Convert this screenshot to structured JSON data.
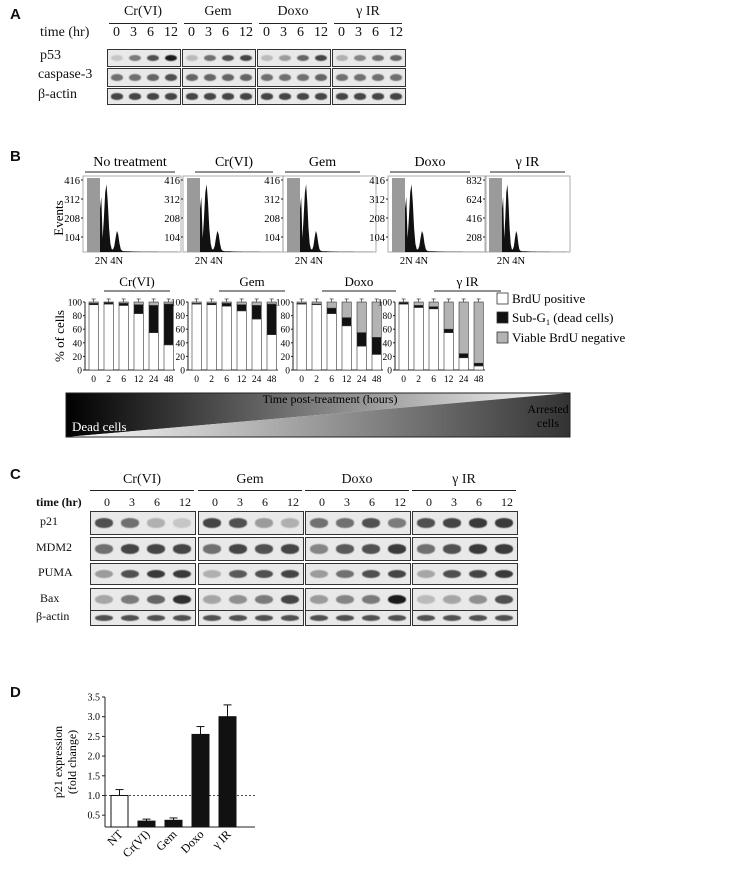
{
  "panels": {
    "a": "A",
    "b": "B",
    "c": "C",
    "d": "D"
  },
  "panel_a": {
    "groups": [
      "Cr(VI)",
      "Gem",
      "Doxo",
      "γ IR"
    ],
    "time_label": "time (hr)",
    "times": [
      "0",
      "3",
      "6",
      "12"
    ],
    "rows": [
      "p53",
      "caspase-3",
      "β-actin"
    ]
  },
  "panel_b_hist": {
    "titles": [
      "No treatment",
      "Cr(VI)",
      "Gem",
      "Doxo",
      "γ IR"
    ],
    "yticks": [
      [
        "416",
        "312",
        "208",
        "104"
      ],
      [
        "416",
        "312",
        "208",
        "104"
      ],
      [
        "416",
        "312",
        "208",
        "104"
      ],
      [
        "416",
        "312",
        "208",
        "104"
      ],
      [
        "832",
        "624",
        "416",
        "208"
      ]
    ],
    "ylabel": "Events",
    "xlabel": "2N 4N"
  },
  "panel_b_bars": {
    "ylabel": "% of cells",
    "yticks": [
      "100",
      "80",
      "60",
      "40",
      "20",
      "0"
    ],
    "groups": [
      "Cr(VI)",
      "Gem",
      "Doxo",
      "γ IR"
    ],
    "times": [
      "0",
      "2",
      "6",
      "12",
      "24",
      "48"
    ],
    "xlabel": "Time post-treatment (hours)",
    "legend": [
      "BrdU positive",
      "Sub-G",
      "1",
      " (dead cells)",
      "Viable BrdU negative"
    ],
    "gradient_left": "Dead cells",
    "gradient_right": [
      "Arrested",
      "cells"
    ]
  },
  "panel_c": {
    "groups": [
      "Cr(VI)",
      "Gem",
      "Doxo",
      "γ IR"
    ],
    "time_label": "time (hr)",
    "times": [
      "0",
      "3",
      "6",
      "12"
    ],
    "rows": [
      "p21",
      "MDM2",
      "PUMA",
      "Bax",
      "β-actin"
    ]
  },
  "chart_data": [
    {
      "type": "bar",
      "stacked": true,
      "title": "Cr(VI)",
      "categories": [
        "0",
        "2",
        "6",
        "12",
        "24",
        "48"
      ],
      "ylabel": "% of cells",
      "ylim": [
        0,
        100
      ],
      "series": [
        {
          "name": "BrdU positive",
          "values": [
            96,
            97,
            95,
            83,
            55,
            37
          ]
        },
        {
          "name": "Sub-G1 (dead cells)",
          "values": [
            2,
            2,
            3,
            13,
            40,
            60
          ]
        },
        {
          "name": "Viable BrdU negative",
          "values": [
            2,
            1,
            2,
            4,
            5,
            3
          ]
        }
      ]
    },
    {
      "type": "bar",
      "stacked": true,
      "title": "Gem",
      "categories": [
        "0",
        "2",
        "6",
        "12",
        "24",
        "48"
      ],
      "ylabel": "% of cells",
      "ylim": [
        0,
        100
      ],
      "series": [
        {
          "name": "BrdU positive",
          "values": [
            97,
            96,
            94,
            87,
            75,
            52
          ]
        },
        {
          "name": "Sub-G1 (dead cells)",
          "values": [
            1,
            2,
            4,
            9,
            20,
            45
          ]
        },
        {
          "name": "Viable BrdU negative",
          "values": [
            2,
            2,
            2,
            4,
            5,
            3
          ]
        }
      ]
    },
    {
      "type": "bar",
      "stacked": true,
      "title": "Doxo",
      "categories": [
        "0",
        "2",
        "6",
        "12",
        "24",
        "48"
      ],
      "ylabel": "% of cells",
      "ylim": [
        0,
        100
      ],
      "series": [
        {
          "name": "BrdU positive",
          "values": [
            97,
            96,
            83,
            65,
            35,
            23
          ]
        },
        {
          "name": "Sub-G1 (dead cells)",
          "values": [
            1,
            1,
            8,
            12,
            20,
            25
          ]
        },
        {
          "name": "Viable BrdU negative",
          "values": [
            2,
            3,
            9,
            23,
            45,
            52
          ]
        }
      ]
    },
    {
      "type": "bar",
      "stacked": true,
      "title": "γ IR",
      "categories": [
        "0",
        "2",
        "6",
        "12",
        "24",
        "48"
      ],
      "ylabel": "% of cells",
      "ylim": [
        0,
        100
      ],
      "series": [
        {
          "name": "BrdU positive",
          "values": [
            97,
            92,
            90,
            55,
            18,
            6
          ]
        },
        {
          "name": "Sub-G1 (dead cells)",
          "values": [
            2,
            3,
            3,
            5,
            6,
            4
          ]
        },
        {
          "name": "Viable BrdU negative",
          "values": [
            1,
            5,
            7,
            40,
            76,
            90
          ]
        }
      ]
    },
    {
      "type": "bar",
      "categories": [
        "NT",
        "Cr(VI)",
        "Gem",
        "Doxo",
        "γ IR"
      ],
      "values": [
        1.0,
        0.35,
        0.37,
        2.55,
        3.0
      ],
      "errors": [
        0.15,
        0.05,
        0.06,
        0.2,
        0.3
      ],
      "ylabel": "p21 expression (fold change)",
      "yticks": [
        "0.5",
        "1.0",
        "1.5",
        "2.0",
        "2.5",
        "3.0",
        "3.5"
      ],
      "ylim": [
        0.2,
        3.5
      ],
      "reference_line": 1.0,
      "colors": {
        "NT": "#ffffff",
        "others": "#111111"
      }
    }
  ]
}
